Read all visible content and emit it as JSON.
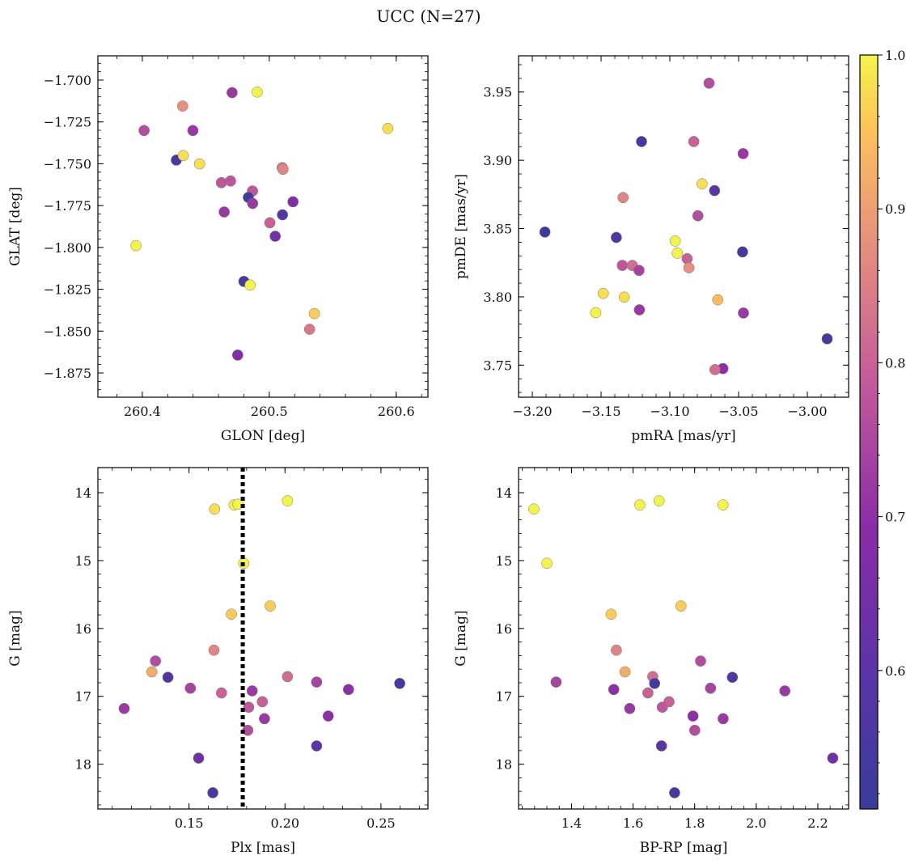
{
  "chart_data": {
    "title": "UCC (N=27)",
    "colorbar": {
      "colormap": "plasma",
      "min": 0.51,
      "max": 1.0,
      "ticks": [
        0.6,
        0.7,
        0.8,
        0.9,
        1.0
      ],
      "tick_labels": [
        "0.6",
        "0.7",
        "0.8",
        "0.9",
        "1.0"
      ]
    },
    "panels": [
      {
        "type": "scatter",
        "xlabel": "GLON [deg]",
        "ylabel": "GLAT [deg]",
        "xlim": [
          260.365,
          260.625
        ],
        "ylim": [
          -1.8895,
          -1.6855
        ],
        "y_inverted": false,
        "xticks": [
          260.4,
          260.5,
          260.6
        ],
        "xtick_labels": [
          "260.4",
          "260.5",
          "260.6"
        ],
        "yticks": [
          -1.7,
          -1.725,
          -1.75,
          -1.775,
          -1.8,
          -1.825,
          -1.85,
          -1.875
        ],
        "ytick_labels": [
          "−1.700",
          "−1.725",
          "−1.750",
          "−1.775",
          "−1.800",
          "−1.825",
          "−1.850",
          "−1.875"
        ],
        "points": [
          {
            "x": 260.4707,
            "y": -1.7075,
            "c": 0.72
          },
          {
            "x": 260.4905,
            "y": -1.7071,
            "c": 1.0
          },
          {
            "x": 260.4318,
            "y": -1.7155,
            "c": 0.88
          },
          {
            "x": 260.4014,
            "y": -1.7301,
            "c": 0.76
          },
          {
            "x": 260.4398,
            "y": -1.7301,
            "c": 0.72
          },
          {
            "x": 260.5933,
            "y": -1.7289,
            "c": 0.98
          },
          {
            "x": 260.4268,
            "y": -1.7478,
            "c": 0.56
          },
          {
            "x": 260.4323,
            "y": -1.7451,
            "c": 0.98
          },
          {
            "x": 260.4451,
            "y": -1.7501,
            "c": 0.98
          },
          {
            "x": 260.5102,
            "y": -1.7523,
            "c": 0.84
          },
          {
            "x": 260.5108,
            "y": -1.7533,
            "c": 0.86
          },
          {
            "x": 260.4623,
            "y": -1.7613,
            "c": 0.78
          },
          {
            "x": 260.4695,
            "y": -1.7603,
            "c": 0.78
          },
          {
            "x": 260.4868,
            "y": -1.7663,
            "c": 0.78
          },
          {
            "x": 260.4835,
            "y": -1.7701,
            "c": 0.52
          },
          {
            "x": 260.4869,
            "y": -1.7737,
            "c": 0.72
          },
          {
            "x": 260.5187,
            "y": -1.7727,
            "c": 0.68
          },
          {
            "x": 260.4645,
            "y": -1.7788,
            "c": 0.72
          },
          {
            "x": 260.5104,
            "y": -1.7805,
            "c": 0.58
          },
          {
            "x": 260.5005,
            "y": -1.7853,
            "c": 0.8
          },
          {
            "x": 260.5047,
            "y": -1.7933,
            "c": 0.64
          },
          {
            "x": 260.395,
            "y": -1.7989,
            "c": 1.0
          },
          {
            "x": 260.48,
            "y": -1.8203,
            "c": 0.56
          },
          {
            "x": 260.4849,
            "y": -1.8225,
            "c": 1.0
          },
          {
            "x": 260.5355,
            "y": -1.8395,
            "c": 0.96
          },
          {
            "x": 260.5318,
            "y": -1.8489,
            "c": 0.84
          },
          {
            "x": 260.4751,
            "y": -1.8643,
            "c": 0.68
          }
        ]
      },
      {
        "type": "scatter",
        "xlabel": "pmRA [mas/yr]",
        "ylabel": "pmDE [mas/yr]",
        "xlim": [
          -3.21,
          -2.97
        ],
        "ylim": [
          3.7265,
          3.9765
        ],
        "y_inverted": false,
        "xticks": [
          -3.2,
          -3.15,
          -3.1,
          -3.05,
          -3.0
        ],
        "xtick_labels": [
          "−3.20",
          "−3.15",
          "−3.10",
          "−3.05",
          "−3.00"
        ],
        "yticks": [
          3.75,
          3.8,
          3.85,
          3.9,
          3.95
        ],
        "ytick_labels": [
          "3.75",
          "3.80",
          "3.85",
          "3.90",
          "3.95"
        ],
        "points": [
          {
            "x": -3.0715,
            "y": 3.9565,
            "c": 0.76
          },
          {
            "x": -3.1206,
            "y": 3.9137,
            "c": 0.54
          },
          {
            "x": -3.0826,
            "y": 3.9137,
            "c": 0.8
          },
          {
            "x": -3.0467,
            "y": 3.9049,
            "c": 0.72
          },
          {
            "x": -3.0766,
            "y": 3.8828,
            "c": 0.98
          },
          {
            "x": -3.134,
            "y": 3.8727,
            "c": 0.86
          },
          {
            "x": -3.0675,
            "y": 3.8778,
            "c": 0.6
          },
          {
            "x": -3.1908,
            "y": 3.8475,
            "c": 0.52
          },
          {
            "x": -3.0796,
            "y": 3.8594,
            "c": 0.76
          },
          {
            "x": -3.1389,
            "y": 3.8435,
            "c": 0.58
          },
          {
            "x": -3.0961,
            "y": 3.8409,
            "c": 1.0
          },
          {
            "x": -3.0946,
            "y": 3.832,
            "c": 1.0
          },
          {
            "x": -3.0471,
            "y": 3.8329,
            "c": 0.54
          },
          {
            "x": -3.0874,
            "y": 3.8279,
            "c": 0.8
          },
          {
            "x": -3.1345,
            "y": 3.823,
            "c": 0.78
          },
          {
            "x": -3.1273,
            "y": 3.823,
            "c": 0.82
          },
          {
            "x": -3.1224,
            "y": 3.8194,
            "c": 0.74
          },
          {
            "x": -3.0861,
            "y": 3.8213,
            "c": 0.88
          },
          {
            "x": -3.1484,
            "y": 3.8025,
            "c": 0.98
          },
          {
            "x": -3.1332,
            "y": 3.7998,
            "c": 0.98
          },
          {
            "x": -3.0651,
            "y": 3.7978,
            "c": 0.94
          },
          {
            "x": -3.1221,
            "y": 3.7905,
            "c": 0.72
          },
          {
            "x": -3.1539,
            "y": 3.7884,
            "c": 1.0
          },
          {
            "x": -3.0465,
            "y": 3.7882,
            "c": 0.72
          },
          {
            "x": -2.9856,
            "y": 3.7693,
            "c": 0.54
          },
          {
            "x": -3.0614,
            "y": 3.7475,
            "c": 0.7
          },
          {
            "x": -3.0672,
            "y": 3.7467,
            "c": 0.82
          }
        ]
      },
      {
        "type": "scatter",
        "xlabel": "Plx [mas]",
        "ylabel": "G [mag]",
        "xlim": [
          0.1025,
          0.2745
        ],
        "ylim": [
          13.63,
          18.66
        ],
        "y_inverted": true,
        "vline": {
          "x": 0.178,
          "style": "dotted"
        },
        "xticks": [
          0.15,
          0.2,
          0.25
        ],
        "xtick_labels": [
          "0.15",
          "0.20",
          "0.25"
        ],
        "yticks": [
          14,
          15,
          16,
          17,
          18
        ],
        "ytick_labels": [
          "14",
          "15",
          "16",
          "17",
          "18"
        ],
        "points": [
          {
            "x": 0.2013,
            "y": 14.12,
            "c": 1.0
          },
          {
            "x": 0.1735,
            "y": 14.18,
            "c": 1.0
          },
          {
            "x": 0.1755,
            "y": 14.17,
            "c": 1.0
          },
          {
            "x": 0.1633,
            "y": 14.24,
            "c": 0.98
          },
          {
            "x": 0.1785,
            "y": 15.04,
            "c": 1.0
          },
          {
            "x": 0.1923,
            "y": 15.67,
            "c": 0.96
          },
          {
            "x": 0.1721,
            "y": 15.79,
            "c": 0.96
          },
          {
            "x": 0.163,
            "y": 16.32,
            "c": 0.86
          },
          {
            "x": 0.1325,
            "y": 16.48,
            "c": 0.76
          },
          {
            "x": 0.1306,
            "y": 16.64,
            "c": 0.92
          },
          {
            "x": 0.2013,
            "y": 16.71,
            "c": 0.82
          },
          {
            "x": 0.139,
            "y": 16.72,
            "c": 0.58
          },
          {
            "x": 0.2165,
            "y": 16.79,
            "c": 0.74
          },
          {
            "x": 0.2598,
            "y": 16.81,
            "c": 0.54
          },
          {
            "x": 0.1507,
            "y": 16.88,
            "c": 0.74
          },
          {
            "x": 0.2331,
            "y": 16.9,
            "c": 0.7
          },
          {
            "x": 0.1829,
            "y": 16.92,
            "c": 0.72
          },
          {
            "x": 0.1669,
            "y": 16.95,
            "c": 0.8
          },
          {
            "x": 0.1882,
            "y": 17.08,
            "c": 0.8
          },
          {
            "x": 0.1811,
            "y": 17.16,
            "c": 0.78
          },
          {
            "x": 0.1162,
            "y": 17.18,
            "c": 0.72
          },
          {
            "x": 0.2225,
            "y": 17.29,
            "c": 0.7
          },
          {
            "x": 0.1893,
            "y": 17.33,
            "c": 0.72
          },
          {
            "x": 0.1806,
            "y": 17.5,
            "c": 0.76
          },
          {
            "x": 0.2165,
            "y": 17.73,
            "c": 0.6
          },
          {
            "x": 0.155,
            "y": 17.91,
            "c": 0.64
          },
          {
            "x": 0.1624,
            "y": 18.42,
            "c": 0.56
          }
        ]
      },
      {
        "type": "scatter",
        "xlabel": "BP-RP [mag]",
        "ylabel": "G [mag]",
        "xlim": [
          1.228,
          2.3
        ],
        "ylim": [
          13.63,
          18.66
        ],
        "y_inverted": true,
        "xticks": [
          1.4,
          1.6,
          1.8,
          2.0,
          2.2
        ],
        "xtick_labels": [
          "1.4",
          "1.6",
          "1.8",
          "2.0",
          "2.2"
        ],
        "yticks": [
          14,
          15,
          16,
          17,
          18
        ],
        "ytick_labels": [
          "14",
          "15",
          "16",
          "17",
          "18"
        ],
        "points": [
          {
            "x": 1.2776,
            "y": 14.24,
            "c": 1.0
          },
          {
            "x": 1.32,
            "y": 15.04,
            "c": 1.0
          },
          {
            "x": 1.6218,
            "y": 14.18,
            "c": 1.0
          },
          {
            "x": 1.6844,
            "y": 14.12,
            "c": 1.0
          },
          {
            "x": 1.8919,
            "y": 14.18,
            "c": 1.0
          },
          {
            "x": 1.5286,
            "y": 15.79,
            "c": 0.96
          },
          {
            "x": 1.7554,
            "y": 15.67,
            "c": 0.96
          },
          {
            "x": 1.5457,
            "y": 16.32,
            "c": 0.86
          },
          {
            "x": 1.5738,
            "y": 16.64,
            "c": 0.92
          },
          {
            "x": 1.8192,
            "y": 16.48,
            "c": 0.76
          },
          {
            "x": 1.664,
            "y": 16.71,
            "c": 0.82
          },
          {
            "x": 1.35,
            "y": 16.79,
            "c": 0.74
          },
          {
            "x": 1.67,
            "y": 16.81,
            "c": 0.54
          },
          {
            "x": 1.9224,
            "y": 16.72,
            "c": 0.58
          },
          {
            "x": 1.5373,
            "y": 16.9,
            "c": 0.7
          },
          {
            "x": 1.8515,
            "y": 16.88,
            "c": 0.74
          },
          {
            "x": 2.0929,
            "y": 16.92,
            "c": 0.72
          },
          {
            "x": 1.6482,
            "y": 16.95,
            "c": 0.8
          },
          {
            "x": 1.7167,
            "y": 17.08,
            "c": 0.8
          },
          {
            "x": 1.695,
            "y": 17.16,
            "c": 0.78
          },
          {
            "x": 1.5891,
            "y": 17.18,
            "c": 0.72
          },
          {
            "x": 1.7944,
            "y": 17.29,
            "c": 0.7
          },
          {
            "x": 1.8926,
            "y": 17.33,
            "c": 0.72
          },
          {
            "x": 1.8002,
            "y": 17.5,
            "c": 0.76
          },
          {
            "x": 1.6923,
            "y": 17.73,
            "c": 0.6
          },
          {
            "x": 2.2485,
            "y": 17.91,
            "c": 0.64
          },
          {
            "x": 1.7348,
            "y": 18.42,
            "c": 0.56
          }
        ]
      }
    ]
  }
}
